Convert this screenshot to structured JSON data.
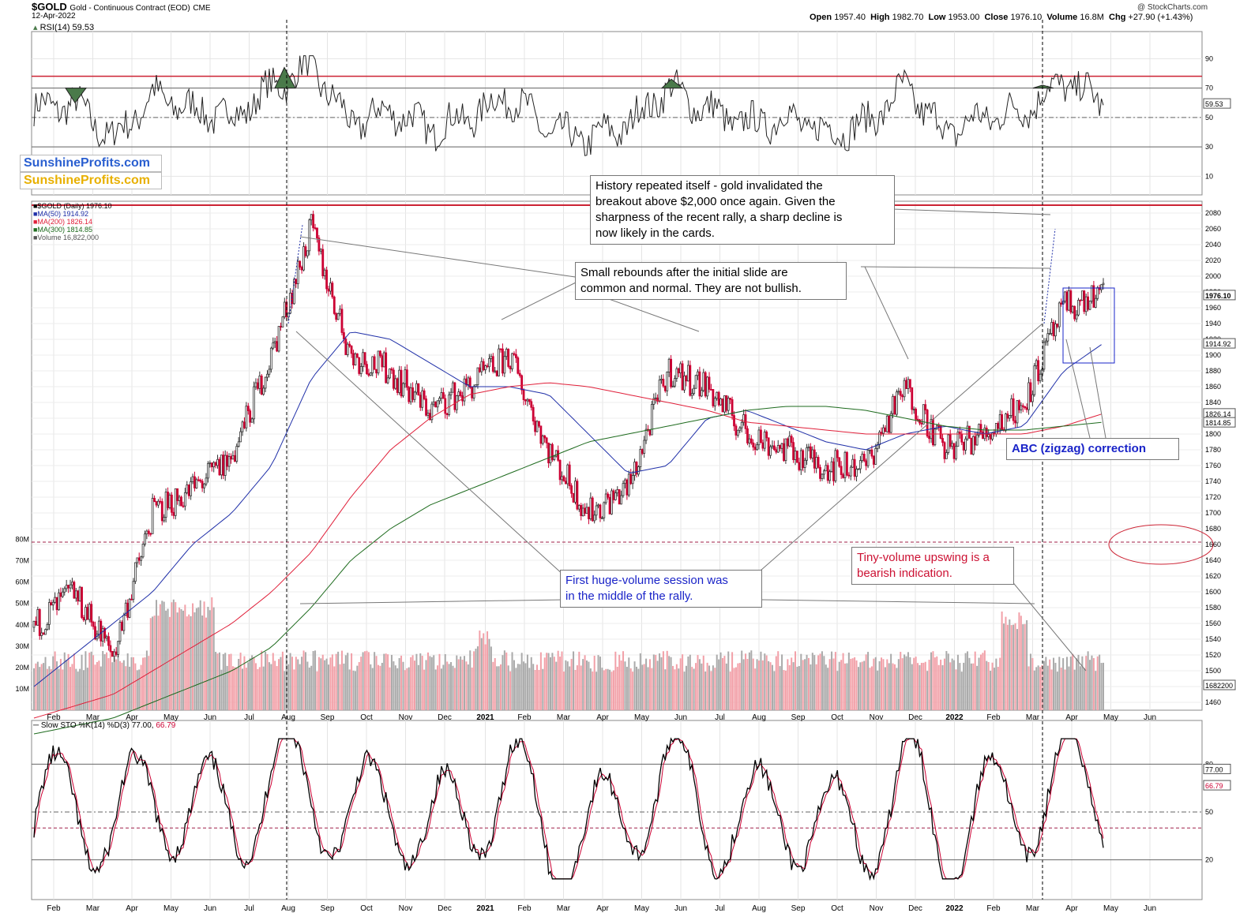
{
  "header": {
    "ticker": "$GOLD",
    "name": "Gold - Continuous Contract (EOD)",
    "exchange": "CME",
    "date": "12-Apr-2022",
    "open_label": "Open",
    "open": "1957.40",
    "high_label": "High",
    "high": "1982.70",
    "low_label": "Low",
    "low": "1953.00",
    "close_label": "Close",
    "close": "1976.10",
    "volume_label": "Volume",
    "volume": "16.8M",
    "chg_label": "Chg",
    "chg": "+27.90 (+1.43%)",
    "watermark": "@ StockCharts.com"
  },
  "logos": [
    "SunshineProfits.com",
    "SunshineProfits.com"
  ],
  "colors": {
    "up": "#333333",
    "down": "#cc0033",
    "ma50": "#1f2fa8",
    "ma200": "#e0203a",
    "ma300": "#1e6b1e",
    "vol_up": "#aaaaaa",
    "vol_down": "#f2a0a8",
    "rsi_fill": "#4a7a4a",
    "annot_blue": "#1a24c8",
    "annot_red": "#cc1133"
  },
  "rsi_panel": {
    "title": "RSI(14) 59.53",
    "last_value_tag": "59.53",
    "levels": [
      70,
      50,
      30
    ],
    "ticks": [
      "90",
      "70",
      "50",
      "30",
      "10"
    ]
  },
  "price_panel": {
    "legend": [
      {
        "text": "$GOLD (Daily) 1976.10",
        "color": "#000000"
      },
      {
        "text": "MA(50) 1914.92",
        "color": "#1f2fa8"
      },
      {
        "text": "MA(200) 1826.14",
        "color": "#e0203a"
      },
      {
        "text": "MA(300) 1814.85",
        "color": "#1e6b1e"
      },
      {
        "text": "Volume 16,822,000",
        "color": "#555555"
      }
    ],
    "price_ticks": [
      "2080",
      "2060",
      "2040",
      "2020",
      "2000",
      "1980",
      "1960",
      "1940",
      "1920",
      "1900",
      "1880",
      "1860",
      "1840",
      "1820",
      "1800",
      "1780",
      "1760",
      "1740",
      "1720",
      "1700",
      "1680",
      "1660",
      "1640",
      "1620",
      "1600",
      "1580",
      "1560",
      "1540",
      "1520",
      "1500",
      "1480",
      "1460"
    ],
    "value_tags": [
      {
        "text": "1976.10",
        "price": 1976.1,
        "bold": true
      },
      {
        "text": "1914.92",
        "price": 1914.92
      },
      {
        "text": "1826.14",
        "price": 1826.14
      },
      {
        "text": "1814.85",
        "price": 1814.85
      },
      {
        "text": "1682200",
        "price": 1482
      }
    ],
    "volume_ticks": [
      "80M",
      "70M",
      "60M",
      "50M",
      "40M",
      "30M",
      "20M",
      "10M"
    ],
    "resistance_level": 2090,
    "support_level": 1663
  },
  "sto_panel": {
    "title": "Slow STO %K(14) %D(3)",
    "k_value": "77.00",
    "d_value": "66.79",
    "ticks": [
      "80",
      "50",
      "20"
    ]
  },
  "x_axis": {
    "labels": [
      "Feb",
      "Mar",
      "Apr",
      "May",
      "Jun",
      "Jul",
      "Aug",
      "Sep",
      "Oct",
      "Nov",
      "Dec",
      "2021",
      "Feb",
      "Mar",
      "Apr",
      "May",
      "Jun",
      "Jul",
      "Aug",
      "Sep",
      "Oct",
      "Nov",
      "Dec",
      "2022",
      "Feb",
      "Mar",
      "Apr",
      "May",
      "Jun"
    ],
    "bold_labels": [
      "2021",
      "2022"
    ]
  },
  "annotations": {
    "history": "History repeated itself - gold invalidated the\nbreakout above $2,000 once again. Given the\nsharpness of the recent rally, a sharp decline is\nnow likely in the cards.",
    "rebounds": "Small rebounds after the initial slide are\ncommon and normal. They are not bullish.",
    "first_volume": "First huge-volume session was\nin the middle of the rally.",
    "tiny_volume": "Tiny-volume upswing is a\nbearish indication.",
    "abc": "ABC (zigzag) correction"
  },
  "chart_data": {
    "type": "line",
    "title": "$GOLD Gold - Continuous Contract (EOD) CME",
    "xlabel": "",
    "ylabel": "",
    "ylim": [
      1450,
      2095
    ],
    "x": [
      "2020-01",
      "2020-02",
      "2020-03",
      "2020-04",
      "2020-05",
      "2020-06",
      "2020-07",
      "2020-08",
      "2020-09",
      "2020-10",
      "2020-11",
      "2020-12",
      "2021-01",
      "2021-02",
      "2021-03",
      "2021-04",
      "2021-05",
      "2021-06",
      "2021-07",
      "2021-08",
      "2021-09",
      "2021-10",
      "2021-11",
      "2021-12",
      "2022-01",
      "2022-02",
      "2022-03",
      "2022-04"
    ],
    "series": [
      {
        "name": "$GOLD",
        "values": [
          1555,
          1600,
          1520,
          1700,
          1730,
          1770,
          1900,
          2060,
          1900,
          1880,
          1830,
          1860,
          1900,
          1780,
          1700,
          1730,
          1880,
          1860,
          1800,
          1780,
          1760,
          1760,
          1860,
          1780,
          1800,
          1840,
          1960,
          1976
        ]
      },
      {
        "name": "MA(50)",
        "values": [
          1480,
          1520,
          1560,
          1600,
          1660,
          1700,
          1760,
          1870,
          1930,
          1920,
          1890,
          1860,
          1860,
          1850,
          1800,
          1750,
          1760,
          1820,
          1830,
          1810,
          1790,
          1780,
          1800,
          1810,
          1800,
          1810,
          1880,
          1915
        ]
      },
      {
        "name": "MA(200)",
        "values": [
          1440,
          1455,
          1470,
          1500,
          1530,
          1560,
          1600,
          1650,
          1720,
          1780,
          1820,
          1850,
          1860,
          1865,
          1860,
          1850,
          1840,
          1830,
          1815,
          1810,
          1805,
          1800,
          1800,
          1800,
          1800,
          1800,
          1810,
          1826
        ]
      },
      {
        "name": "MA(300)",
        "values": [
          1420,
          1430,
          1440,
          1460,
          1480,
          1500,
          1530,
          1580,
          1640,
          1680,
          1710,
          1730,
          1750,
          1770,
          1790,
          1800,
          1810,
          1820,
          1830,
          1835,
          1835,
          1830,
          1820,
          1810,
          1805,
          1805,
          1810,
          1815
        ]
      },
      {
        "name": "RSI(14)",
        "values": [
          55,
          60,
          35,
          65,
          55,
          50,
          70,
          85,
          45,
          55,
          42,
          50,
          65,
          40,
          35,
          45,
          70,
          55,
          45,
          50,
          40,
          45,
          70,
          40,
          50,
          55,
          75,
          60
        ]
      },
      {
        "name": "Slow STO %K(14)",
        "values": [
          30,
          75,
          20,
          80,
          50,
          40,
          90,
          85,
          30,
          70,
          20,
          50,
          90,
          20,
          10,
          60,
          90,
          50,
          30,
          60,
          20,
          30,
          90,
          15,
          50,
          60,
          90,
          77
        ]
      },
      {
        "name": "Slow STO %D(3)",
        "values": [
          35,
          70,
          25,
          75,
          50,
          45,
          85,
          85,
          35,
          65,
          25,
          50,
          85,
          25,
          15,
          55,
          85,
          55,
          35,
          55,
          25,
          35,
          85,
          20,
          45,
          55,
          85,
          67
        ]
      }
    ],
    "rsi_levels": [
      70,
      50,
      30
    ],
    "sto_levels": [
      80,
      50,
      20
    ],
    "volume_ylim": [
      0,
      85
    ]
  }
}
